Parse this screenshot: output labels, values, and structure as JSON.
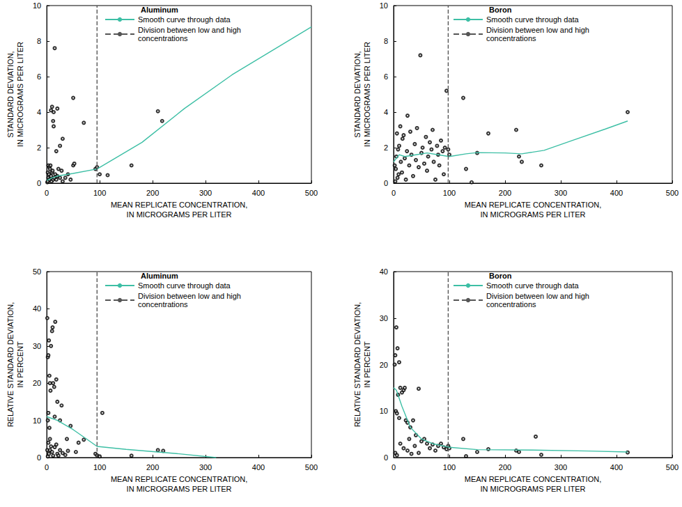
{
  "chart_data": [
    {
      "type": "scatter",
      "title": "Aluminum",
      "x_label": "MEAN REPLICATE CONCENTRATION,\nIN MICROGRAMS PER LITER",
      "y_label": "STANDARD DEVIATION,\nIN MICROGRAMS PER LITER",
      "xlim": [
        0,
        500
      ],
      "xticks": [
        0,
        100,
        200,
        300,
        400,
        500
      ],
      "ylim": [
        0,
        10
      ],
      "yticks": [
        0,
        2,
        4,
        6,
        8,
        10
      ],
      "grid": false,
      "legend": "upper left",
      "series": [
        {
          "type": "scatter",
          "marker": "open_circle",
          "color": "#000000",
          "x": [
            1,
            2,
            2,
            3,
            3,
            4,
            5,
            5,
            6,
            7,
            8,
            8,
            9,
            10,
            10,
            11,
            12,
            12,
            13,
            13,
            14,
            15,
            16,
            18,
            18,
            20,
            20,
            22,
            25,
            25,
            28,
            30,
            30,
            35,
            40,
            45,
            50,
            50,
            52,
            70,
            92,
            95,
            100,
            115,
            160,
            210,
            218
          ],
          "values": [
            0.05,
            0.1,
            0.6,
            0.3,
            1,
            0.5,
            0.2,
            0.9,
            0.8,
            1,
            0.4,
            4.1,
            0.1,
            0.6,
            4.3,
            0.7,
            0.2,
            3.5,
            3.2,
            4,
            0.3,
            7.6,
            0.5,
            0.2,
            1.8,
            0.4,
            4.2,
            0.8,
            0.3,
            2.1,
            0.7,
            0.1,
            2.5,
            0.3,
            0.5,
            0.2,
            1,
            4.8,
            1.1,
            3.4,
            0.8,
            0.9,
            0.5,
            0.45,
            1,
            4.05,
            3.5
          ]
        },
        {
          "name": "Smooth curve through data",
          "type": "line",
          "line_style": "solid",
          "color": "#3dbfa5",
          "x": [
            0,
            10,
            20,
            50,
            95,
            180,
            260,
            350,
            500
          ],
          "values": [
            0.15,
            0.3,
            0.4,
            0.55,
            0.8,
            2.3,
            4.2,
            6.1,
            8.8
          ]
        },
        {
          "name": "Division between low and high concentrations",
          "type": "line",
          "line_style": "dashed",
          "color": "#555555",
          "x": [
            95,
            95
          ],
          "values": [
            0,
            10
          ]
        }
      ]
    },
    {
      "type": "scatter",
      "title": "Boron",
      "x_label": "MEAN REPLICATE CONCENTRATION,\nIN MICROGRAMS PER LITER",
      "y_label": "STANDARD DEVIATION,\nIN MICROGRAMS PER LITER",
      "xlim": [
        0,
        500
      ],
      "xticks": [
        0,
        100,
        200,
        300,
        400,
        500
      ],
      "ylim": [
        0,
        10
      ],
      "yticks": [
        0,
        2,
        4,
        6,
        8,
        10
      ],
      "grid": false,
      "legend": "upper left",
      "series": [
        {
          "type": "scatter",
          "marker": "open_circle",
          "color": "#000000",
          "x": [
            2,
            3,
            4,
            5,
            6,
            7,
            8,
            9,
            10,
            12,
            13,
            15,
            16,
            18,
            20,
            22,
            24,
            25,
            28,
            30,
            32,
            35,
            38,
            40,
            42,
            45,
            48,
            50,
            52,
            55,
            58,
            60,
            62,
            65,
            68,
            70,
            72,
            75,
            78,
            80,
            82,
            85,
            88,
            90,
            92,
            95,
            98,
            100,
            125,
            130,
            140,
            150,
            170,
            220,
            225,
            230,
            265,
            420
          ],
          "values": [
            1,
            0.1,
            0.8,
            1.5,
            2.8,
            0.3,
            1.9,
            0.5,
            2.1,
            3.2,
            1.2,
            0.6,
            2.5,
            2.7,
            1.4,
            0.2,
            1.8,
            3.8,
            1,
            2.9,
            1.6,
            0.4,
            2.2,
            1.3,
            3.1,
            0.9,
            7.2,
            1.7,
            2,
            1.1,
            2.6,
            0.7,
            1.5,
            2.3,
            1.9,
            3,
            1.2,
            0.2,
            2.1,
            1.6,
            1,
            2.4,
            1.8,
            0.5,
            2,
            5.2,
            1.9,
            1.6,
            4.8,
            0.8,
            0.05,
            1.7,
            2.8,
            3,
            1.5,
            1.2,
            1,
            4
          ]
        },
        {
          "name": "Smooth curve through data",
          "type": "line",
          "line_style": "solid",
          "color": "#3dbfa5",
          "x": [
            0,
            10,
            20,
            40,
            60,
            80,
            100,
            130,
            150,
            200,
            230,
            270,
            320,
            380,
            420
          ],
          "values": [
            1.2,
            1.6,
            1.5,
            1.6,
            1.7,
            1.6,
            1.5,
            1.65,
            1.72,
            1.7,
            1.65,
            1.85,
            2.4,
            3.05,
            3.5
          ]
        },
        {
          "name": "Division between low and high concentrations",
          "type": "line",
          "line_style": "dashed",
          "color": "#555555",
          "x": [
            98,
            98
          ],
          "values": [
            0,
            10
          ]
        }
      ]
    },
    {
      "type": "scatter",
      "title": "Aluminum",
      "x_label": "MEAN REPLICATE CONCENTRATION,\nIN MICROGRAMS PER LITER",
      "y_label": "RELATIVE STANDARD DEVIATION,\nIN PERCENT",
      "xlim": [
        0,
        500
      ],
      "xticks": [
        0,
        100,
        200,
        300,
        400,
        500
      ],
      "ylim": [
        0,
        50
      ],
      "yticks": [
        0,
        10,
        20,
        30,
        40,
        50
      ],
      "grid": false,
      "legend": "upper left",
      "series": [
        {
          "type": "scatter",
          "marker": "open_circle",
          "color": "#000000",
          "x": [
            1,
            1,
            2,
            2,
            2,
            3,
            3,
            3,
            4,
            4,
            5,
            5,
            6,
            6,
            6,
            7,
            8,
            8,
            10,
            10,
            11,
            12,
            12,
            14,
            15,
            15,
            16,
            18,
            18,
            20,
            20,
            22,
            25,
            25,
            28,
            30,
            35,
            38,
            40,
            45,
            55,
            60,
            70,
            92,
            95,
            100,
            105,
            160,
            210,
            220
          ],
          "values": [
            37.5,
            2,
            27,
            10,
            0.3,
            27.5,
            12,
            4,
            31.5,
            1,
            22,
            8,
            20,
            2,
            5,
            18,
            30,
            3,
            34,
            1.5,
            35,
            20,
            0.5,
            19,
            11,
            2.8,
            36.5,
            21,
            3.5,
            15,
            1,
            0.5,
            10,
            2,
            14,
            1.2,
            0.7,
            5,
            1.8,
            8.5,
            1.5,
            4,
            4.8,
            1,
            0.6,
            0.3,
            12,
            0.5,
            2,
            1.8
          ]
        },
        {
          "name": "Smooth curve through data",
          "type": "line",
          "line_style": "solid",
          "color": "#3dbfa5",
          "x": [
            0,
            20,
            50,
            75,
            95,
            150,
            250,
            320
          ],
          "values": [
            11,
            10,
            7.5,
            5,
            3,
            2.2,
            1,
            0
          ]
        },
        {
          "name": "Division between low and high concentrations",
          "type": "line",
          "line_style": "dashed",
          "color": "#555555",
          "x": [
            95,
            95
          ],
          "values": [
            0,
            50
          ]
        }
      ]
    },
    {
      "type": "scatter",
      "title": "Boron",
      "x_label": "MEAN REPLICATE CONCENTRATION,\nIN MICROGRAMS PER LITER",
      "y_label": "RELATIVE STANDARD DEVIATION,\nIN PERCENT",
      "xlim": [
        0,
        500
      ],
      "xticks": [
        0,
        100,
        200,
        300,
        400,
        500
      ],
      "ylim": [
        0,
        40
      ],
      "yticks": [
        0,
        10,
        20,
        30,
        40
      ],
      "grid": false,
      "legend": "upper left",
      "series": [
        {
          "type": "scatter",
          "marker": "open_circle",
          "color": "#000000",
          "x": [
            2,
            3,
            3,
            4,
            5,
            6,
            6,
            7,
            8,
            10,
            10,
            12,
            12,
            15,
            18,
            18,
            20,
            22,
            25,
            25,
            28,
            30,
            32,
            35,
            38,
            40,
            45,
            45,
            50,
            55,
            60,
            65,
            70,
            75,
            80,
            85,
            90,
            95,
            98,
            100,
            125,
            130,
            150,
            170,
            220,
            225,
            255,
            265,
            420
          ],
          "values": [
            20,
            22,
            1,
            10,
            28,
            9.5,
            0.5,
            23.5,
            13.5,
            20.5,
            8.5,
            15,
            3,
            14,
            14.5,
            2,
            15,
            8,
            7.5,
            1.5,
            4,
            6.5,
            0.8,
            8,
            2.5,
            4.8,
            14.8,
            1,
            3.5,
            4,
            3,
            2,
            2.8,
            1.5,
            2.5,
            3,
            2.2,
            1.8,
            2.5,
            2,
            4,
            0.3,
            1.2,
            1.8,
            1.5,
            1.2,
            4.5,
            0.6,
            1.1
          ]
        },
        {
          "name": "Smooth curve through data",
          "type": "line",
          "line_style": "solid",
          "color": "#3dbfa5",
          "x": [
            0,
            5,
            15,
            30,
            50,
            70,
            100,
            150,
            250,
            350,
            420
          ],
          "values": [
            15,
            14.5,
            11,
            6.5,
            4,
            3,
            2.2,
            1.7,
            1.6,
            1.4,
            1.2
          ]
        },
        {
          "name": "Division between low and high concentrations",
          "type": "line",
          "line_style": "dashed",
          "color": "#555555",
          "x": [
            98,
            98
          ],
          "values": [
            0,
            40
          ]
        }
      ]
    }
  ]
}
